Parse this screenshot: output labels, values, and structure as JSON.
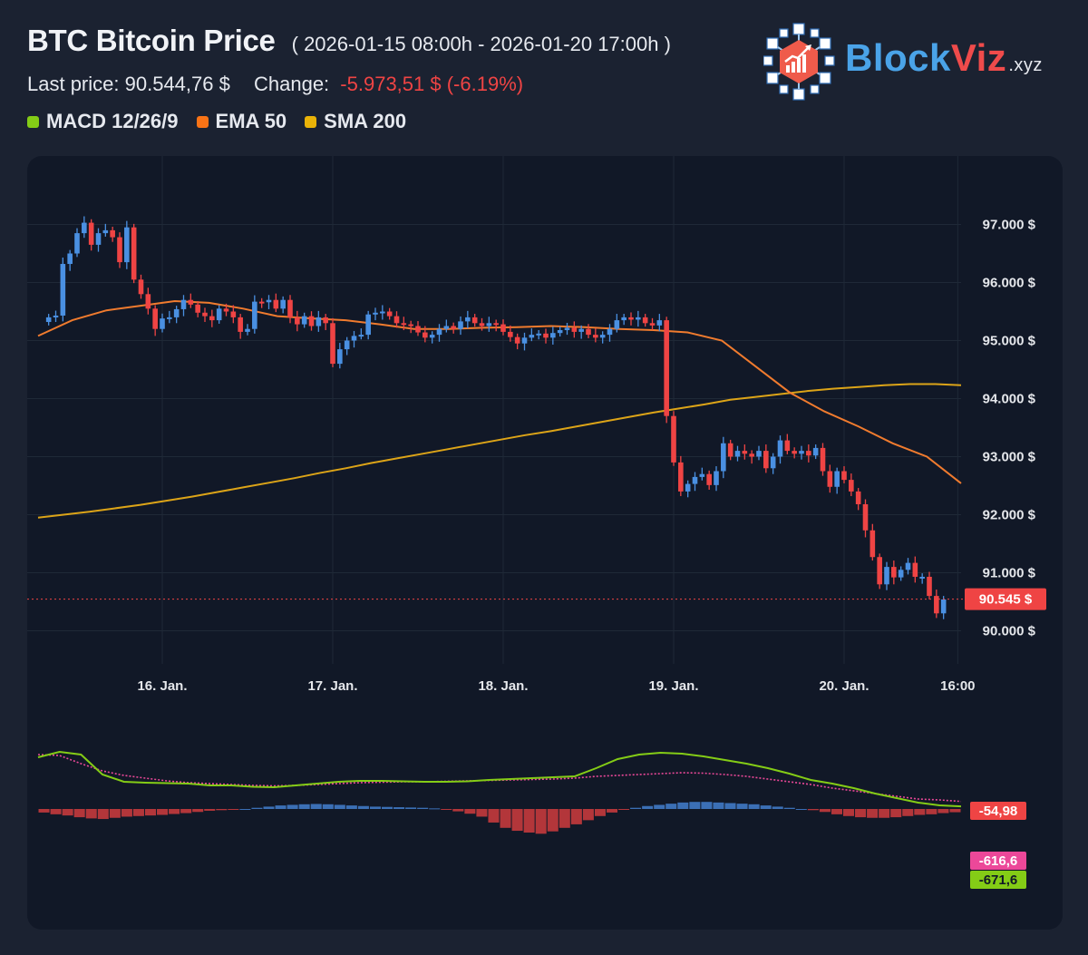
{
  "header": {
    "title": "BTC Bitcoin Price",
    "range": "( 2026-01-15 08:00h - 2026-01-20 17:00h )",
    "last_price_label": "Last price:",
    "last_price": "90.544,76 $",
    "change_label": "Change:",
    "change": "-5.973,51 $ (-6.19%)"
  },
  "legend": [
    {
      "label": "MACD 12/26/9",
      "color": "#84cc16"
    },
    {
      "label": "EMA 50",
      "color": "#f97316"
    },
    {
      "label": "SMA 200",
      "color": "#eab308"
    }
  ],
  "logo": {
    "main": "Block",
    "accent": "Viz",
    "suffix": ".xyz"
  },
  "colors": {
    "up": "#4a90e2",
    "down": "#ef4444",
    "ema": "#f07b2e",
    "sma": "#dca418",
    "macd": "#84cc16",
    "signal": "#ec4899"
  },
  "chart_data": {
    "type": "candlestick",
    "price_axis": {
      "ticks": [
        "97.000 $",
        "96.000 $",
        "95.000 $",
        "94.000 $",
        "93.000 $",
        "92.000 $",
        "91.000 $",
        "90.000 $"
      ],
      "tick_values": [
        97000,
        96000,
        95000,
        94000,
        93000,
        92000,
        91000,
        90000
      ]
    },
    "time_axis": {
      "ticks": [
        "16. Jan.",
        "17. Jan.",
        "18. Jan.",
        "19. Jan.",
        "20. Jan.",
        "16:00"
      ],
      "tick_hours": [
        16,
        40,
        64,
        88,
        112,
        128
      ]
    },
    "start_hour": 0,
    "last_price_tag": "90.545 $",
    "last_price_value": 90545,
    "price": [
      95400,
      95430,
      96320,
      96500,
      96850,
      97030,
      96650,
      96850,
      96900,
      96780,
      96350,
      96950,
      96050,
      95800,
      95550,
      95200,
      95380,
      95400,
      95540,
      95700,
      95620,
      95480,
      95420,
      95350,
      95550,
      95500,
      95400,
      95150,
      95200,
      95670,
      95660,
      95700,
      95550,
      95700,
      95400,
      95280,
      95420,
      95250,
      95400,
      95300,
      94600,
      94850,
      95000,
      95080,
      95100,
      95450,
      95480,
      95500,
      95420,
      95300,
      95280,
      95250,
      95140,
      95050,
      95100,
      95200,
      95250,
      95200,
      95330,
      95400,
      95300,
      95250,
      95300,
      95280,
      95150,
      95060,
      94950,
      95050,
      95100,
      95120,
      95050,
      95130,
      95180,
      95220,
      95150,
      95200,
      95100,
      95050,
      95100,
      95200,
      95350,
      95400,
      95360,
      95400,
      95300,
      95260,
      95350,
      93700,
      92900,
      92400,
      92530,
      92650,
      92700,
      92510,
      92750,
      93230,
      93000,
      93100,
      93050,
      93000,
      93100,
      92800,
      93000,
      93280,
      93100,
      93050,
      93100,
      93020,
      93150,
      92750,
      92480,
      92750,
      92600,
      92400,
      92180,
      91730,
      91270,
      90800,
      91100,
      90920,
      91050,
      91170,
      90930,
      90930,
      90600,
      90300,
      90540
    ],
    "ema50": [
      95080,
      95350,
      95520,
      95600,
      95680,
      95650,
      95550,
      95420,
      95380,
      95350,
      95280,
      95200,
      95200,
      95220,
      95230,
      95250,
      95230,
      95200,
      95180,
      95140,
      95000,
      94550,
      94100,
      93780,
      93520,
      93230,
      93000,
      92540
    ],
    "sma200": [
      91950,
      92000,
      92050,
      92110,
      92170,
      92240,
      92310,
      92390,
      92470,
      92550,
      92630,
      92720,
      92800,
      92890,
      92970,
      93050,
      93130,
      93210,
      93290,
      93370,
      93440,
      93520,
      93600,
      93680,
      93760,
      93830,
      93900,
      93980,
      94030,
      94080,
      94130,
      94170,
      94200,
      94230,
      94250,
      94250,
      94230
    ],
    "macd_panel": {
      "histogram_tag": "-54,98",
      "signal_tag": "-616,6",
      "macd_tag": "-671,6",
      "histogram_range": [
        -450,
        250
      ],
      "histogram": [
        -60,
        -90,
        -110,
        -140,
        -160,
        -170,
        -150,
        -130,
        -120,
        -110,
        -100,
        -85,
        -70,
        -50,
        -30,
        -20,
        -10,
        0,
        20,
        40,
        60,
        70,
        80,
        85,
        80,
        70,
        60,
        50,
        40,
        35,
        30,
        25,
        20,
        10,
        -10,
        -40,
        -80,
        -130,
        -230,
        -320,
        -370,
        -400,
        -420,
        -380,
        -320,
        -260,
        -190,
        -120,
        -60,
        -10,
        20,
        50,
        70,
        90,
        110,
        120,
        120,
        110,
        100,
        90,
        80,
        60,
        40,
        20,
        0,
        -20,
        -50,
        -90,
        -120,
        -140,
        -150,
        -150,
        -140,
        -120,
        -100,
        -90,
        -70,
        -55
      ],
      "macd": [
        -130,
        -70,
        -100,
        -320,
        -400,
        -410,
        -415,
        -420,
        -440,
        -440,
        -455,
        -460,
        -440,
        -420,
        -400,
        -390,
        -390,
        -395,
        -400,
        -400,
        -395,
        -380,
        -370,
        -360,
        -350,
        -340,
        -250,
        -150,
        -100,
        -80,
        -90,
        -120,
        -160,
        -200,
        -250,
        -310,
        -380,
        -420,
        -470,
        -530,
        -580,
        -630,
        -660,
        -671.6
      ],
      "signal": [
        -100,
        -110,
        -200,
        -280,
        -330,
        -360,
        -390,
        -410,
        -420,
        -430,
        -440,
        -445,
        -440,
        -430,
        -420,
        -410,
        -405,
        -400,
        -400,
        -395,
        -390,
        -385,
        -380,
        -375,
        -370,
        -360,
        -340,
        -330,
        -320,
        -310,
        -300,
        -305,
        -320,
        -340,
        -370,
        -400,
        -430,
        -470,
        -500,
        -530,
        -560,
        -590,
        -600,
        -616.6
      ]
    }
  }
}
